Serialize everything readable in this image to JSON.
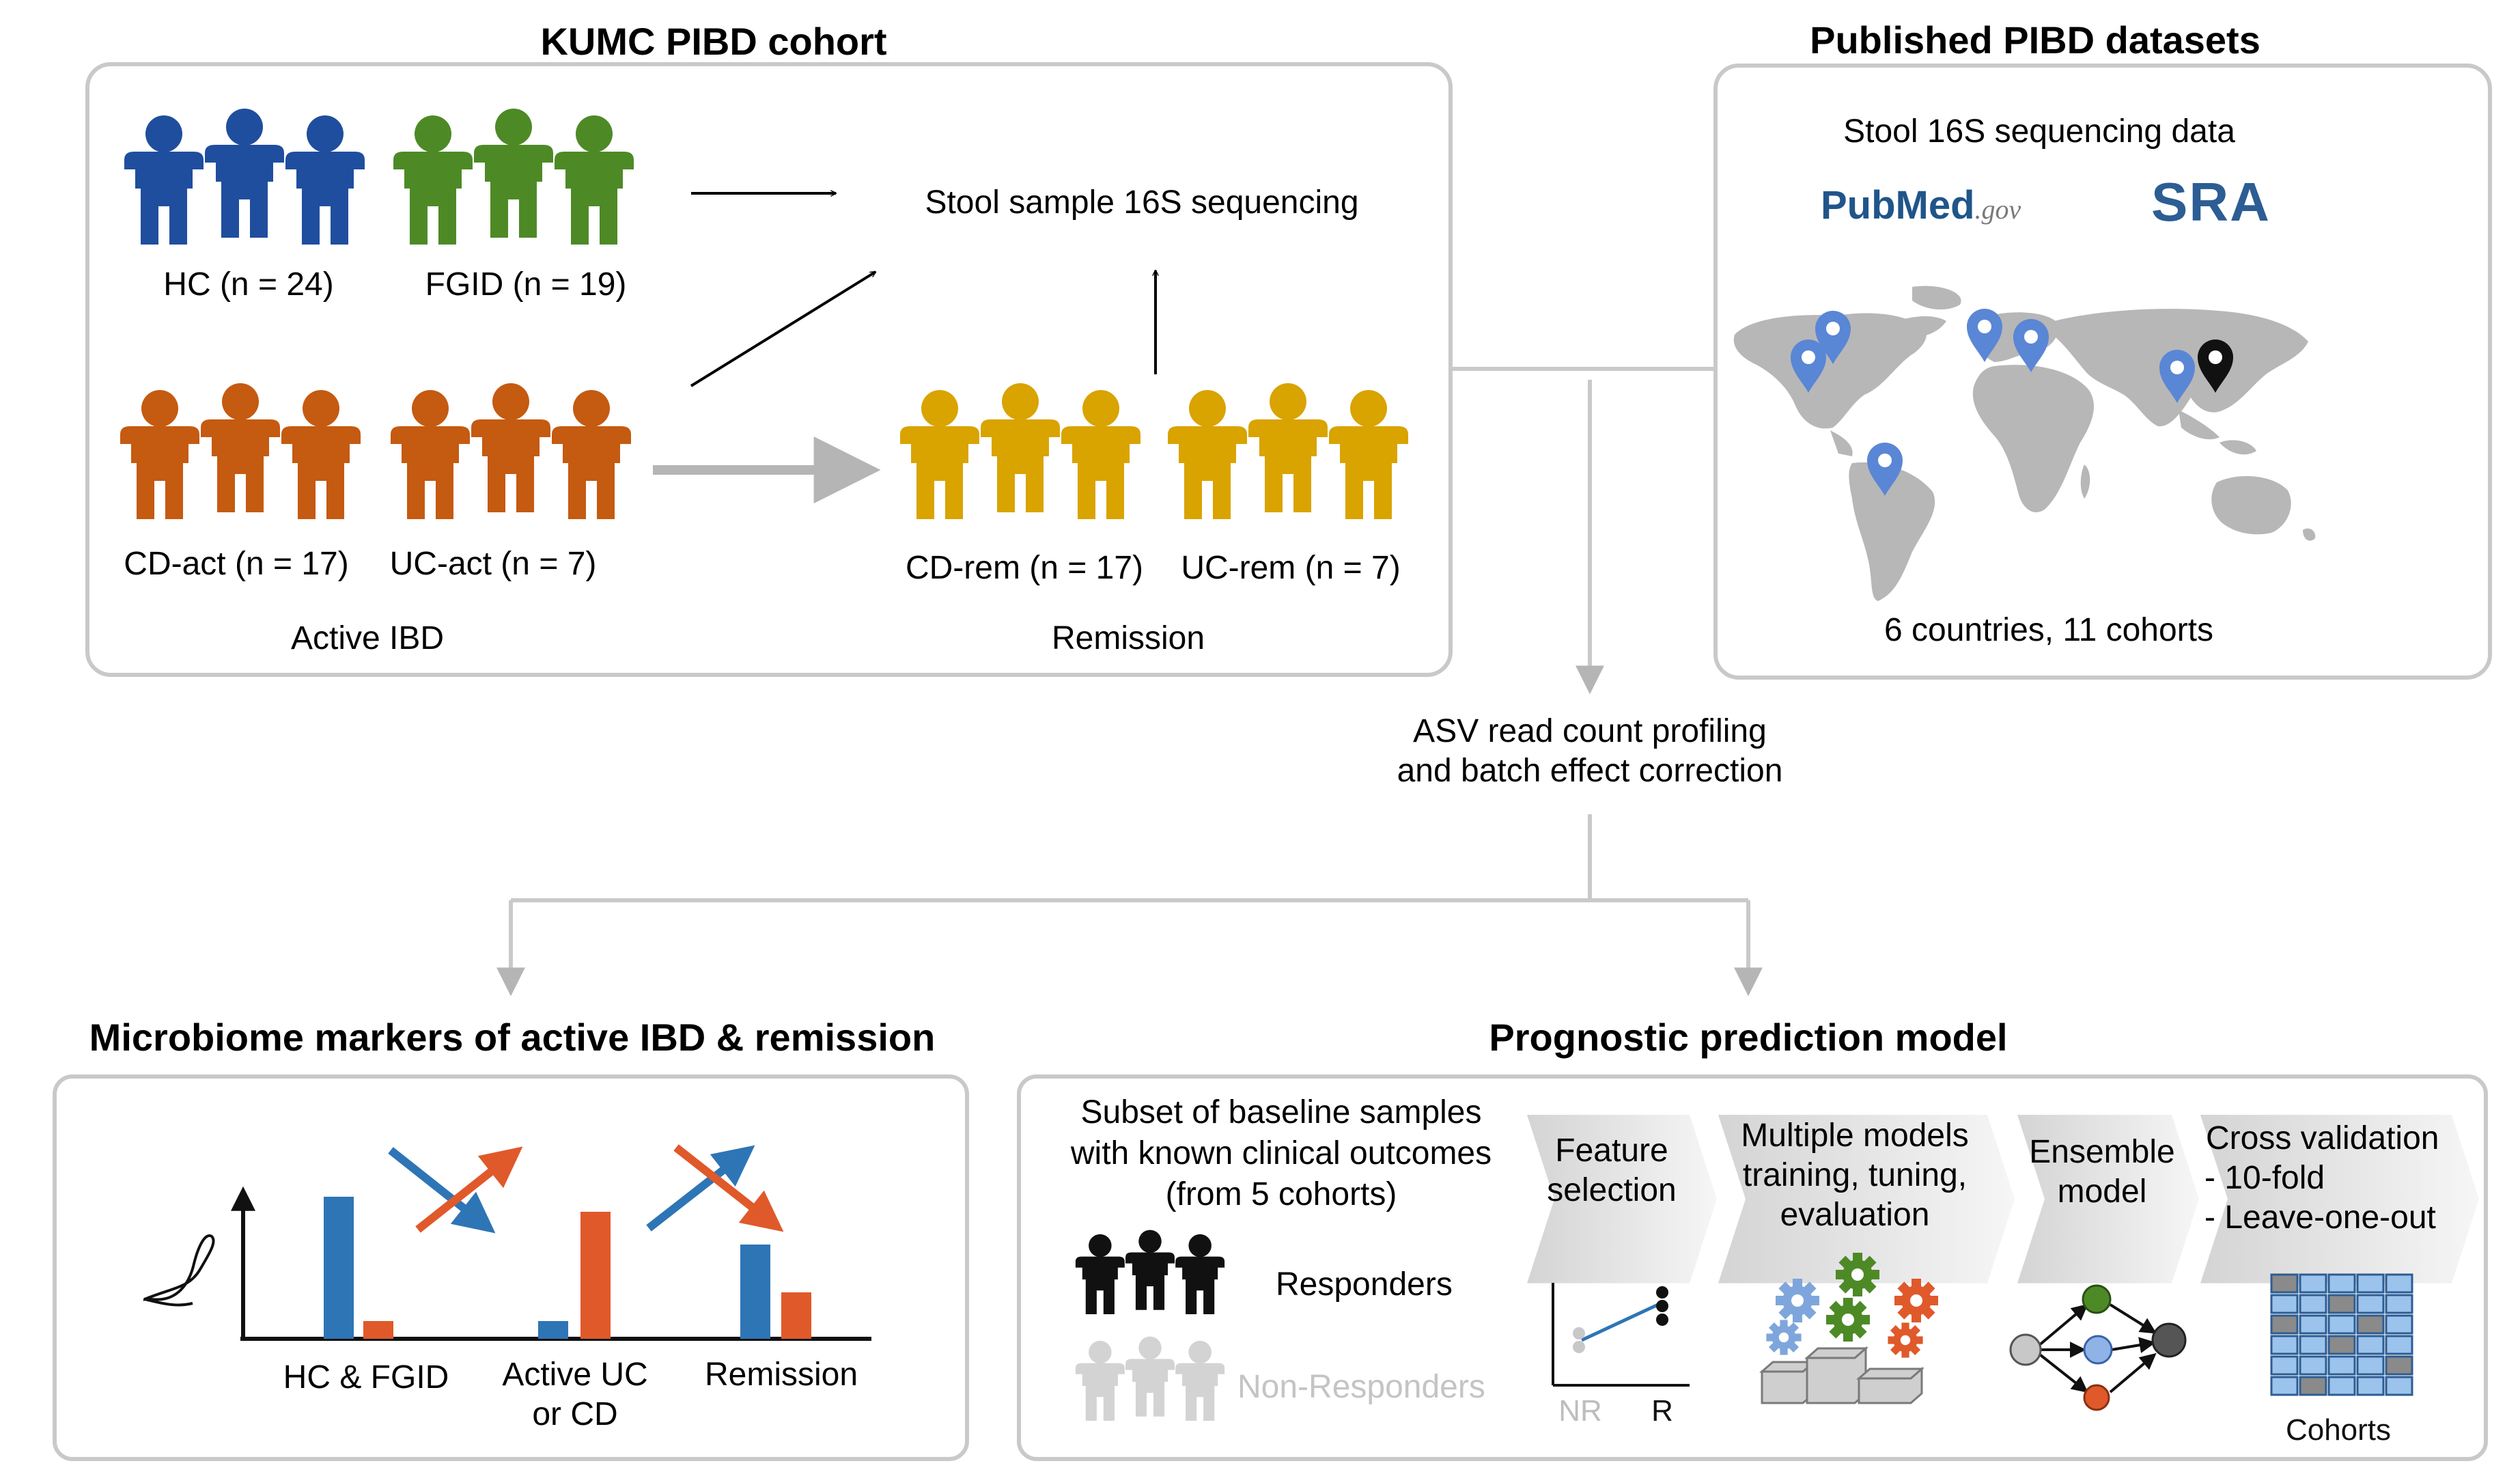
{
  "kumc": {
    "title": "KUMC PIBD cohort",
    "hc_label": "HC (n = 24)",
    "fgid_label": "FGID (n = 19)",
    "cdact_label": "CD-act (n = 17)",
    "ucact_label": "UC-act (n = 7)",
    "cdrem_label": "CD-rem (n = 17)",
    "ucrem_label": "UC-rem (n = 7)",
    "active_group": "Active IBD",
    "remission_group": "Remission",
    "sequencing_label": "Stool sample 16S sequencing",
    "colors": {
      "hc": "#1f4e9e",
      "fgid": "#4d8a26",
      "active": "#c55a11",
      "remission": "#d9a300"
    }
  },
  "published": {
    "title": "Published PIBD datasets",
    "data_label": "Stool 16S sequencing data",
    "pubmed_logo": "PubMed.gov",
    "pubmed_pub": "Pub",
    "pubmed_med": "Med",
    "pubmed_gov": ".gov",
    "sra_logo": "SRA",
    "summary": "6 countries, 11 cohorts",
    "map_pin_icon": "map-pin-icon"
  },
  "processing": {
    "line1": "ASV read count profiling",
    "line2": "and batch effect correction"
  },
  "markers": {
    "title": "Microbiome markers of active IBD & remission",
    "group1": "HC & FGID",
    "group2_line1": "Active UC",
    "group2_line2": "or CD",
    "group3": "Remission",
    "bar_colors": {
      "blue": "#2e75b6",
      "orange": "#e0592a"
    }
  },
  "prognostic": {
    "title": "Prognostic prediction model",
    "subset_line1": "Subset of baseline samples",
    "subset_line2": "with known clinical outcomes",
    "subset_line3": "(from 5 cohorts)",
    "responders": "Responders",
    "non_responders": "Non-Responders",
    "step_feature_1": "Feature",
    "step_feature_2": "selection",
    "step_models_1": "Multiple models",
    "step_models_2": "training, tuning,",
    "step_models_3": "evaluation",
    "step_ensemble_1": "Ensemble",
    "step_ensemble_2": "model",
    "step_cv_1": "Cross validation",
    "step_cv_2": "- 10-fold",
    "step_cv_3": "- Leave-one-out",
    "axis_nr": "NR",
    "axis_r": "R",
    "cohorts_label": "Cohorts"
  }
}
